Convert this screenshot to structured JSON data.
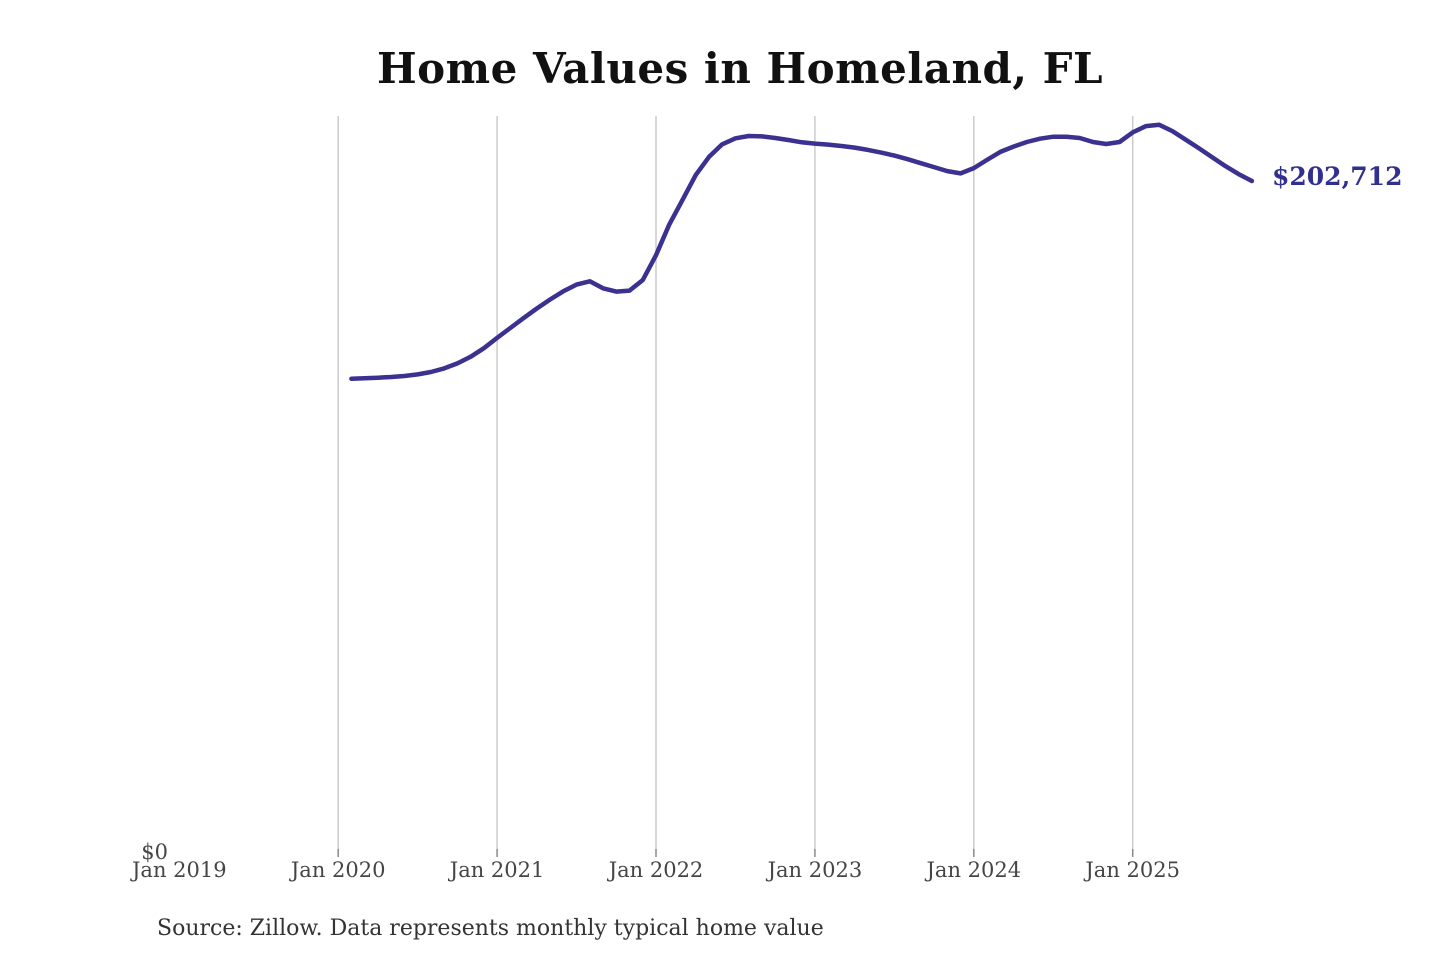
{
  "chart": {
    "title": "Home Values in Homeland, FL",
    "end_label": "$202,712",
    "y_zero_label": "$0",
    "source_note": "Source: Zillow. Data represents monthly typical home value",
    "line_color": "#3a3191",
    "end_label_color": "#32308e",
    "gridline_color": "#cccccc",
    "tick_color": "#8a8a8a"
  },
  "chart_data": {
    "type": "line",
    "title": "Home Values in Homeland, FL",
    "xlabel": "",
    "ylabel": "",
    "legend": "none",
    "grid": "vertical-only",
    "ylim": [
      0,
      222000
    ],
    "x_tick_labels": [
      "Jan 2019",
      "Jan 2020",
      "Jan 2021",
      "Jan 2022",
      "Jan 2023",
      "Jan 2024",
      "Jan 2025"
    ],
    "gridline_years": [
      2020,
      2021,
      2022,
      2023,
      2024,
      2025
    ],
    "y_tick_labels": [
      "$0"
    ],
    "end_point_label": "$202,712",
    "source": "Source: Zillow. Data represents monthly typical home value",
    "x": [
      "Feb 2020",
      "Mar 2020",
      "Apr 2020",
      "May 2020",
      "Jun 2020",
      "Jul 2020",
      "Aug 2020",
      "Sep 2020",
      "Oct 2020",
      "Nov 2020",
      "Dec 2020",
      "Jan 2021",
      "Feb 2021",
      "Mar 2021",
      "Apr 2021",
      "May 2021",
      "Jun 2021",
      "Jul 2021",
      "Aug 2021",
      "Sep 2021",
      "Oct 2021",
      "Nov 2021",
      "Dec 2021",
      "Jan 2022",
      "Feb 2022",
      "Mar 2022",
      "Apr 2022",
      "May 2022",
      "Jun 2022",
      "Jul 2022",
      "Aug 2022",
      "Sep 2022",
      "Oct 2022",
      "Nov 2022",
      "Dec 2022",
      "Jan 2023",
      "Feb 2023",
      "Mar 2023",
      "Apr 2023",
      "May 2023",
      "Jun 2023",
      "Jul 2023",
      "Aug 2023",
      "Sep 2023",
      "Oct 2023",
      "Nov 2023",
      "Dec 2023",
      "Jan 2024",
      "Feb 2024",
      "Mar 2024",
      "Apr 2024",
      "May 2024",
      "Jun 2024",
      "Jul 2024",
      "Aug 2024",
      "Sep 2024",
      "Oct 2024",
      "Nov 2024",
      "Dec 2024",
      "Jan 2025",
      "Feb 2025",
      "Mar 2025",
      "Apr 2025",
      "May 2025",
      "Jun 2025",
      "Jul 2025",
      "Aug 2025",
      "Sep 2025",
      "Oct 2025"
    ],
    "values": [
      143000,
      143100,
      143300,
      143500,
      143800,
      144300,
      145000,
      146100,
      147600,
      149600,
      152200,
      155300,
      158300,
      161300,
      164200,
      166900,
      169400,
      171400,
      172400,
      170300,
      169300,
      169600,
      172800,
      180300,
      189500,
      197000,
      204500,
      210000,
      213800,
      215600,
      216300,
      216200,
      215700,
      215100,
      214400,
      214000,
      213700,
      213300,
      212800,
      212100,
      211300,
      210400,
      209300,
      208100,
      206900,
      205700,
      205000,
      206600,
      209100,
      211500,
      213100,
      214500,
      215500,
      216100,
      216100,
      215700,
      214500,
      213900,
      214500,
      217400,
      219300,
      219700,
      217800,
      215200,
      212600,
      209900,
      207200,
      204800,
      202712
    ]
  }
}
